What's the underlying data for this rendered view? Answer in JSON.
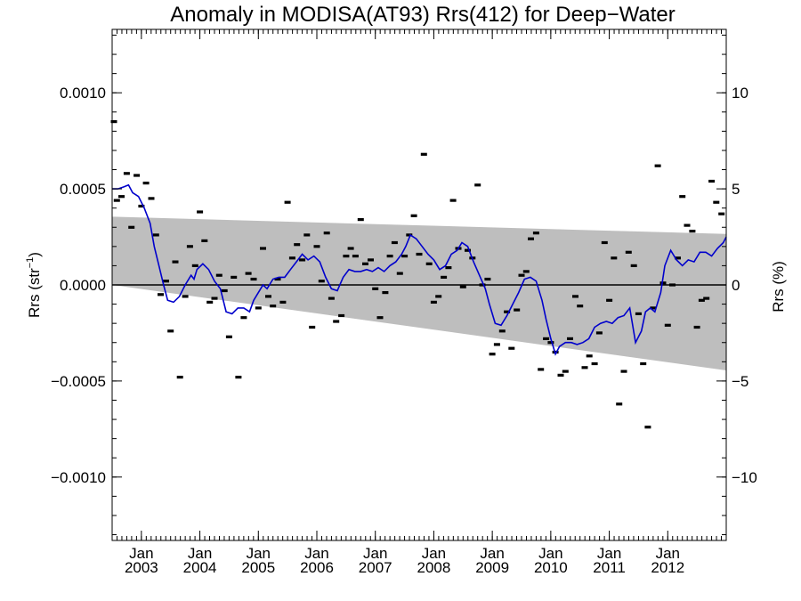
{
  "chart_data": {
    "type": "scatter",
    "title": "Anomaly in MODISA(AT93) Rrs(412) for Deep−Water",
    "ylabel_left": {
      "base": "Rrs (str",
      "sup": "−1",
      "close": ")"
    },
    "ylabel_right": "Rrs (%)",
    "xlim": [
      2002.5,
      2013.0
    ],
    "ylim_left": [
      -0.00133,
      0.00133
    ],
    "ylim_right": [
      -13.3,
      13.3
    ],
    "left_ticks": [
      {
        "value": 0.001,
        "label": "0.0010"
      },
      {
        "value": 0.0005,
        "label": "0.0005"
      },
      {
        "value": 0.0,
        "label": "0.0000"
      },
      {
        "value": -0.0005,
        "label": "−0.0005"
      },
      {
        "value": -0.001,
        "label": "−0.0010"
      }
    ],
    "right_ticks": [
      {
        "value": 10,
        "label": "10"
      },
      {
        "value": 5,
        "label": "5"
      },
      {
        "value": 0,
        "label": "0"
      },
      {
        "value": -5,
        "label": "−5"
      },
      {
        "value": -10,
        "label": "−10"
      }
    ],
    "x_ticks": [
      {
        "value": 2003.0,
        "month": "Jan",
        "year": "2003"
      },
      {
        "value": 2004.0,
        "month": "Jan",
        "year": "2004"
      },
      {
        "value": 2005.0,
        "month": "Jan",
        "year": "2005"
      },
      {
        "value": 2006.0,
        "month": "Jan",
        "year": "2006"
      },
      {
        "value": 2007.0,
        "month": "Jan",
        "year": "2007"
      },
      {
        "value": 2008.0,
        "month": "Jan",
        "year": "2008"
      },
      {
        "value": 2009.0,
        "month": "Jan",
        "year": "2009"
      },
      {
        "value": 2010.0,
        "month": "Jan",
        "year": "2010"
      },
      {
        "value": 2011.0,
        "month": "Jan",
        "year": "2011"
      },
      {
        "value": 2012.0,
        "month": "Jan",
        "year": "2012"
      }
    ],
    "band": {
      "upper": [
        [
          2002.5,
          0.000355
        ],
        [
          2013.0,
          0.000265
        ]
      ],
      "lower": [
        [
          2002.5,
          0.0
        ],
        [
          2013.0,
          -0.000445
        ]
      ]
    },
    "zero_line": 0,
    "points": [
      [
        2002.53,
        0.00085
      ],
      [
        2002.58,
        0.00044
      ],
      [
        2002.66,
        0.00046
      ],
      [
        2002.75,
        0.00058
      ],
      [
        2002.83,
        0.0003
      ],
      [
        2002.92,
        0.00057
      ],
      [
        2003.0,
        0.00041
      ],
      [
        2003.08,
        0.00053
      ],
      [
        2003.17,
        0.00045
      ],
      [
        2003.25,
        0.00026
      ],
      [
        2003.33,
        -5e-05
      ],
      [
        2003.42,
        2e-05
      ],
      [
        2003.5,
        -0.00024
      ],
      [
        2003.58,
        0.00012
      ],
      [
        2003.66,
        -0.00048
      ],
      [
        2003.75,
        -6e-05
      ],
      [
        2003.83,
        0.0002
      ],
      [
        2003.92,
        0.0001
      ],
      [
        2004.0,
        0.00038
      ],
      [
        2004.08,
        0.00023
      ],
      [
        2004.17,
        -9e-05
      ],
      [
        2004.25,
        -7e-05
      ],
      [
        2004.33,
        5e-05
      ],
      [
        2004.42,
        -3e-05
      ],
      [
        2004.5,
        -0.00027
      ],
      [
        2004.58,
        4e-05
      ],
      [
        2004.66,
        -0.00048
      ],
      [
        2004.75,
        -0.00017
      ],
      [
        2004.83,
        6e-05
      ],
      [
        2004.92,
        3e-05
      ],
      [
        2005.0,
        -0.00012
      ],
      [
        2005.08,
        0.00019
      ],
      [
        2005.17,
        -6e-05
      ],
      [
        2005.25,
        -0.00011
      ],
      [
        2005.33,
        3e-05
      ],
      [
        2005.42,
        -9e-05
      ],
      [
        2005.5,
        0.00043
      ],
      [
        2005.58,
        0.00014
      ],
      [
        2005.66,
        0.00021
      ],
      [
        2005.75,
        0.00013
      ],
      [
        2005.83,
        0.00026
      ],
      [
        2005.92,
        -0.00022
      ],
      [
        2006.0,
        0.0002
      ],
      [
        2006.08,
        2e-05
      ],
      [
        2006.17,
        0.00027
      ],
      [
        2006.25,
        -7e-05
      ],
      [
        2006.33,
        -0.00019
      ],
      [
        2006.42,
        -0.00016
      ],
      [
        2006.5,
        0.00015
      ],
      [
        2006.58,
        0.00019
      ],
      [
        2006.66,
        0.00015
      ],
      [
        2006.75,
        0.00034
      ],
      [
        2006.83,
        0.00011
      ],
      [
        2006.92,
        0.00013
      ],
      [
        2007.0,
        -2e-05
      ],
      [
        2007.08,
        -0.00017
      ],
      [
        2007.17,
        -4e-05
      ],
      [
        2007.25,
        0.00015
      ],
      [
        2007.33,
        0.00022
      ],
      [
        2007.42,
        6e-05
      ],
      [
        2007.5,
        0.00015
      ],
      [
        2007.58,
        0.00026
      ],
      [
        2007.66,
        0.00036
      ],
      [
        2007.75,
        0.00016
      ],
      [
        2007.83,
        0.00068
      ],
      [
        2007.92,
        0.00011
      ],
      [
        2008.0,
        -9e-05
      ],
      [
        2008.08,
        -6e-05
      ],
      [
        2008.17,
        4e-05
      ],
      [
        2008.25,
        9e-05
      ],
      [
        2008.33,
        0.00044
      ],
      [
        2008.42,
        0.00019
      ],
      [
        2008.5,
        -1e-05
      ],
      [
        2008.58,
        0.00018
      ],
      [
        2008.66,
        0.00014
      ],
      [
        2008.75,
        0.00052
      ],
      [
        2008.83,
        0.0
      ],
      [
        2008.92,
        3e-05
      ],
      [
        2009.0,
        -0.00036
      ],
      [
        2009.08,
        -0.00031
      ],
      [
        2009.17,
        -0.00024
      ],
      [
        2009.25,
        -0.00014
      ],
      [
        2009.33,
        -0.00033
      ],
      [
        2009.42,
        -0.00013
      ],
      [
        2009.5,
        5e-05
      ],
      [
        2009.58,
        7e-05
      ],
      [
        2009.66,
        0.00024
      ],
      [
        2009.75,
        0.00027
      ],
      [
        2009.83,
        -0.00044
      ],
      [
        2009.92,
        -0.00028
      ],
      [
        2010.0,
        -0.0003
      ],
      [
        2010.08,
        -0.00035
      ],
      [
        2010.17,
        -0.00047
      ],
      [
        2010.25,
        -0.00045
      ],
      [
        2010.33,
        -0.00028
      ],
      [
        2010.42,
        -6e-05
      ],
      [
        2010.5,
        -0.00011
      ],
      [
        2010.58,
        -0.00043
      ],
      [
        2010.66,
        -0.00037
      ],
      [
        2010.75,
        -0.00041
      ],
      [
        2010.83,
        -0.00025
      ],
      [
        2010.92,
        0.00022
      ],
      [
        2011.0,
        -8e-05
      ],
      [
        2011.08,
        0.00014
      ],
      [
        2011.17,
        -0.00062
      ],
      [
        2011.25,
        -0.00045
      ],
      [
        2011.33,
        0.00017
      ],
      [
        2011.42,
        0.0001
      ],
      [
        2011.5,
        -0.00015
      ],
      [
        2011.58,
        -0.00041
      ],
      [
        2011.66,
        -0.00074
      ],
      [
        2011.75,
        -0.00012
      ],
      [
        2011.83,
        0.00062
      ],
      [
        2011.92,
        1e-05
      ],
      [
        2012.0,
        -0.00021
      ],
      [
        2012.08,
        0.0
      ],
      [
        2012.17,
        0.00014
      ],
      [
        2012.25,
        0.00046
      ],
      [
        2012.33,
        0.00031
      ],
      [
        2012.42,
        0.00028
      ],
      [
        2012.5,
        -0.00022
      ],
      [
        2012.58,
        -8e-05
      ],
      [
        2012.66,
        -7e-05
      ],
      [
        2012.75,
        0.00054
      ],
      [
        2012.83,
        0.00043
      ],
      [
        2012.92,
        0.00037
      ]
    ],
    "smooth": {
      "name": "",
      "color": "#0000cc",
      "points": [
        [
          2002.5,
          0.0005
        ],
        [
          2002.6,
          0.0005
        ],
        [
          2002.7,
          0.00051
        ],
        [
          2002.78,
          0.00052
        ],
        [
          2002.85,
          0.00048
        ],
        [
          2002.95,
          0.00046
        ],
        [
          2003.05,
          0.0004
        ],
        [
          2003.15,
          0.00032
        ],
        [
          2003.22,
          0.0002
        ],
        [
          2003.3,
          0.0001
        ],
        [
          2003.38,
          0.0
        ],
        [
          2003.45,
          -8e-05
        ],
        [
          2003.55,
          -9e-05
        ],
        [
          2003.65,
          -6e-05
        ],
        [
          2003.75,
          0.0
        ],
        [
          2003.85,
          5e-05
        ],
        [
          2003.9,
          3e-05
        ],
        [
          2003.95,
          8e-05
        ],
        [
          2004.05,
          0.00011
        ],
        [
          2004.15,
          8e-05
        ],
        [
          2004.25,
          2e-05
        ],
        [
          2004.35,
          -2e-05
        ],
        [
          2004.45,
          -0.00014
        ],
        [
          2004.55,
          -0.00015
        ],
        [
          2004.65,
          -0.00012
        ],
        [
          2004.75,
          -0.00012
        ],
        [
          2004.85,
          -0.00014
        ],
        [
          2004.92,
          -8e-05
        ],
        [
          2005.0,
          -4e-05
        ],
        [
          2005.08,
          0.0
        ],
        [
          2005.15,
          -2e-05
        ],
        [
          2005.25,
          3e-05
        ],
        [
          2005.35,
          4e-05
        ],
        [
          2005.45,
          4e-05
        ],
        [
          2005.55,
          8e-05
        ],
        [
          2005.65,
          0.00012
        ],
        [
          2005.75,
          0.00016
        ],
        [
          2005.85,
          0.00013
        ],
        [
          2005.95,
          0.00015
        ],
        [
          2006.05,
          0.00012
        ],
        [
          2006.15,
          4e-05
        ],
        [
          2006.25,
          -2e-05
        ],
        [
          2006.35,
          -3e-05
        ],
        [
          2006.45,
          4e-05
        ],
        [
          2006.55,
          8e-05
        ],
        [
          2006.65,
          7e-05
        ],
        [
          2006.75,
          7e-05
        ],
        [
          2006.85,
          8e-05
        ],
        [
          2006.95,
          7e-05
        ],
        [
          2007.05,
          9e-05
        ],
        [
          2007.15,
          7e-05
        ],
        [
          2007.25,
          0.0001
        ],
        [
          2007.35,
          0.00012
        ],
        [
          2007.45,
          0.00016
        ],
        [
          2007.52,
          0.0002
        ],
        [
          2007.6,
          0.00026
        ],
        [
          2007.7,
          0.00024
        ],
        [
          2007.8,
          0.0002
        ],
        [
          2007.9,
          0.00016
        ],
        [
          2008.0,
          0.00013
        ],
        [
          2008.1,
          8e-05
        ],
        [
          2008.2,
          0.0001
        ],
        [
          2008.3,
          0.00016
        ],
        [
          2008.4,
          0.00018
        ],
        [
          2008.48,
          0.00022
        ],
        [
          2008.58,
          0.0002
        ],
        [
          2008.68,
          0.00012
        ],
        [
          2008.78,
          5e-05
        ],
        [
          2008.88,
          -2e-05
        ],
        [
          2008.95,
          -0.0001
        ],
        [
          2009.05,
          -0.0002
        ],
        [
          2009.15,
          -0.00021
        ],
        [
          2009.25,
          -0.00016
        ],
        [
          2009.35,
          -0.0001
        ],
        [
          2009.45,
          -4e-05
        ],
        [
          2009.55,
          3e-05
        ],
        [
          2009.65,
          4e-05
        ],
        [
          2009.75,
          2e-05
        ],
        [
          2009.85,
          -8e-05
        ],
        [
          2009.92,
          -0.00018
        ],
        [
          2010.0,
          -0.00028
        ],
        [
          2010.08,
          -0.00036
        ],
        [
          2010.15,
          -0.00032
        ],
        [
          2010.25,
          -0.0003
        ],
        [
          2010.35,
          -0.0003
        ],
        [
          2010.45,
          -0.00031
        ],
        [
          2010.55,
          -0.0003
        ],
        [
          2010.65,
          -0.00028
        ],
        [
          2010.75,
          -0.00022
        ],
        [
          2010.85,
          -0.0002
        ],
        [
          2010.95,
          -0.00019
        ],
        [
          2011.05,
          -0.0002
        ],
        [
          2011.15,
          -0.00017
        ],
        [
          2011.25,
          -0.00016
        ],
        [
          2011.35,
          -0.00012
        ],
        [
          2011.45,
          -0.0003
        ],
        [
          2011.55,
          -0.00024
        ],
        [
          2011.62,
          -0.00014
        ],
        [
          2011.7,
          -0.00012
        ],
        [
          2011.78,
          -0.00014
        ],
        [
          2011.88,
          -4e-05
        ],
        [
          2011.95,
          0.0001
        ],
        [
          2012.05,
          0.00018
        ],
        [
          2012.15,
          0.00013
        ],
        [
          2012.25,
          0.0001
        ],
        [
          2012.35,
          0.00013
        ],
        [
          2012.45,
          0.00012
        ],
        [
          2012.55,
          0.00017
        ],
        [
          2012.65,
          0.00017
        ],
        [
          2012.75,
          0.00015
        ],
        [
          2012.85,
          0.00019
        ],
        [
          2012.95,
          0.00022
        ],
        [
          2013.0,
          0.00025
        ]
      ]
    },
    "colors": {
      "band": "#bebebe",
      "points": "#000000",
      "zero_line": "#000000",
      "axes": "#000000"
    },
    "grid": false,
    "legend": "none"
  }
}
